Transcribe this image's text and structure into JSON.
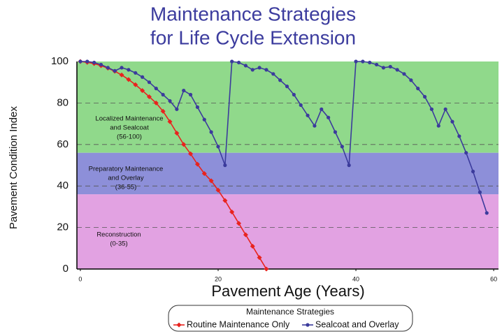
{
  "chart_data": {
    "type": "line",
    "title": [
      "Maintenance Strategies",
      "for Life Cycle Extension"
    ],
    "x_label": "Pavement Age (Years)",
    "y_label": "Pavement Condition Index",
    "xlim": [
      -0.5,
      60.7
    ],
    "ylim": [
      0,
      100
    ],
    "xticks": [
      0,
      20,
      40,
      60
    ],
    "yticks": [
      0,
      20,
      40,
      60,
      80,
      100
    ],
    "grid": true,
    "bands": [
      {
        "label": [
          "Localized Maintenance",
          "and Sealcoat",
          "(56-100)"
        ],
        "range": [
          56,
          100
        ],
        "color": "#90d98b"
      },
      {
        "label": [
          "Preparatory Maintenance",
          "and Overlay",
          "(36-55)"
        ],
        "range": [
          36,
          56
        ],
        "color": "#8d8fd9"
      },
      {
        "label": [
          "Reconstruction",
          "(0-35)"
        ],
        "range": [
          0,
          36
        ],
        "color": "#e2a2e2"
      }
    ],
    "legend_title": "Maintenance Strategies",
    "series": [
      {
        "name": "Routine Maintenance Only",
        "color": "#e8231e",
        "marker": "diamond",
        "x": [
          0,
          1,
          2,
          3,
          4,
          5,
          6,
          7,
          8,
          9,
          10,
          11,
          12,
          13,
          14,
          15,
          16,
          17,
          18,
          19,
          20,
          21,
          22,
          23,
          24,
          25,
          26,
          27
        ],
        "values": [
          100,
          99.6,
          99,
          98,
          96.8,
          95.3,
          93.5,
          91.3,
          88.8,
          86,
          83,
          80,
          76,
          71,
          65.5,
          60,
          55.5,
          50.5,
          46,
          42.5,
          38,
          33,
          27.5,
          22,
          16.5,
          11,
          5.5,
          0
        ]
      },
      {
        "name": "Sealcoat and Overlay",
        "color": "#3b3b9c",
        "marker": "circle",
        "x": [
          0,
          1,
          2,
          3,
          4,
          5,
          6,
          7,
          8,
          9,
          10,
          11,
          12,
          13,
          14,
          15,
          16,
          17,
          18,
          19,
          20,
          21,
          22,
          23,
          24,
          25,
          26,
          27,
          28,
          29,
          30,
          31,
          32,
          33,
          34,
          35,
          36,
          37,
          38,
          39,
          40,
          41,
          42,
          43,
          44,
          45,
          46,
          47,
          48,
          49,
          50,
          51,
          52,
          53,
          54,
          55,
          56,
          57,
          58,
          59
        ],
        "values": [
          100,
          100,
          99.5,
          98.5,
          97,
          95.5,
          97,
          96,
          94.5,
          92.5,
          90,
          87,
          84,
          81,
          77,
          86,
          84,
          78,
          72,
          66,
          59,
          50,
          100,
          99.5,
          98,
          96,
          97,
          96,
          94,
          91,
          88,
          84,
          79,
          74,
          69,
          77,
          73,
          66,
          59,
          50,
          100,
          100,
          99.5,
          98.5,
          97,
          97.5,
          96,
          94,
          91,
          87,
          83,
          77,
          69,
          77,
          71,
          64,
          56,
          47,
          37,
          27
        ]
      }
    ]
  }
}
